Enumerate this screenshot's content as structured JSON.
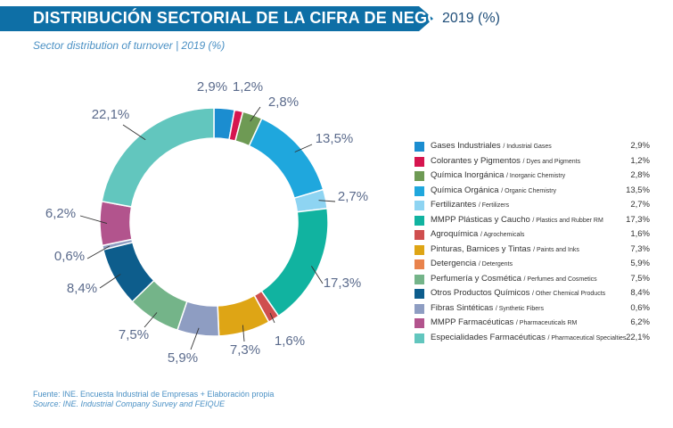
{
  "header": {
    "title": "DISTRIBUCIÓN SECTORIAL DE LA CIFRA DE NEGOCIOS",
    "year": "2019 (%)"
  },
  "subtitle": "Sector distribution of turnover | 2019 (%)",
  "colors": {
    "header_bar": "#0e6fa6",
    "label_text": "#5b6b8c"
  },
  "chart_data": {
    "type": "pie",
    "title": "DISTRIBUCIÓN SECTORIAL DE LA CIFRA DE NEGOCIOS",
    "subtitle": "Sector distribution of turnover | 2019 (%)",
    "donut": true,
    "legend_position": "right",
    "series": [
      {
        "name": "Gases Industriales",
        "name_en": "/ Industrial Gases",
        "value": 2.9,
        "label": "2,9%",
        "color": "#1b8dd0"
      },
      {
        "name": "Colorantes y Pigmentos",
        "name_en": "/ Dyes and Pigments",
        "value": 1.2,
        "label": "1,2%",
        "color": "#d6154f"
      },
      {
        "name": "Química Inorgánica",
        "name_en": "/ Inorganic Chemistry",
        "value": 2.8,
        "label": "2,8%",
        "color": "#6e9a54"
      },
      {
        "name": "Química Orgánica",
        "name_en": "/ Organic Chemistry",
        "value": 13.5,
        "label": "13,5%",
        "color": "#1fa7dd"
      },
      {
        "name": "Fertilizantes",
        "name_en": "/ Fertilizers",
        "value": 2.7,
        "label": "2,7%",
        "color": "#8ed4f2"
      },
      {
        "name": "MMPP Plásticas y Caucho",
        "name_en": "/ Plastics and Rubber RM",
        "value": 17.3,
        "label": "17,3%",
        "color": "#11b3a0"
      },
      {
        "name": "Agroquímica",
        "name_en": "/ Agrochemicals",
        "value": 1.6,
        "label": "1,6%",
        "color": "#cf4e4e"
      },
      {
        "name": "Pinturas, Barnices y Tintas",
        "name_en": "/ Paints and Inks",
        "value": 7.3,
        "label": "7,3%",
        "color": "#dea515"
      },
      {
        "name": "Detergencia",
        "name_en": "/ Detergents",
        "value": 5.9,
        "label": "5,9%",
        "color": "#e9834c"
      },
      {
        "name": "Perfumería y Cosmética",
        "name_en": "/ Perfumes and Cosmetics",
        "value": 7.5,
        "label": "7,5%",
        "color": "#74b489"
      },
      {
        "name": "Otros Productos Químicos",
        "name_en": "/ Other Chemical Products",
        "value": 8.4,
        "label": "8,4%",
        "color": "#0d5d8c"
      },
      {
        "name": "Fibras Sintéticas",
        "name_en": "/ Synthetic Fibers",
        "value": 0.6,
        "label": "0,6%",
        "color": "#8e9dc2"
      },
      {
        "name": "MMPP Farmacéuticas",
        "name_en": "/ Pharmaceuticals RM",
        "value": 6.2,
        "label": "6,2%",
        "color": "#b2548d"
      },
      {
        "name": "Especialidades Farmacéuticas",
        "name_en": "/ Pharmaceutical Specialties",
        "value": 22.1,
        "label": "22,1%",
        "color": "#62c6be"
      }
    ],
    "slices_drawn_clockwise_from_top": [
      {
        "ref": "Gases Industriales",
        "value": 2.9,
        "color": "#1b8dd0",
        "label": "2,9%"
      },
      {
        "ref": "Colorantes y Pigmentos",
        "value": 1.2,
        "color": "#d6154f",
        "label": "1,2%"
      },
      {
        "ref": "Química Inorgánica",
        "value": 2.8,
        "color": "#6e9a54",
        "label": "2,8%"
      },
      {
        "ref": "Química Orgánica",
        "value": 13.5,
        "color": "#1fa7dd",
        "label": "13,5%"
      },
      {
        "ref": "Fertilizantes",
        "value": 2.7,
        "color": "#8ed4f2",
        "label": "2,7%"
      },
      {
        "ref": "MMPP Plásticas y Caucho",
        "value": 17.3,
        "color": "#11b3a0",
        "label": "17,3%"
      },
      {
        "ref": "Agroquímica",
        "value": 1.6,
        "color": "#cf4e4e",
        "label": "1,6%"
      },
      {
        "ref": "Pinturas, Barnices y Tintas",
        "value": 7.3,
        "color": "#dea515",
        "label": "7,3%"
      },
      {
        "ref": "Detergencia (shown)",
        "value": 5.9,
        "color": "#8e9dc2",
        "label": "5,9%"
      },
      {
        "ref": "Perfumería y Cosmética",
        "value": 7.5,
        "color": "#74b489",
        "label": "7,5%"
      },
      {
        "ref": "Otros Productos Químicos",
        "value": 8.4,
        "color": "#0d5d8c",
        "label": "8,4%"
      },
      {
        "ref": "Fibras Sintéticas",
        "value": 0.6,
        "color": "#8e9dc2",
        "label": "0,6%"
      },
      {
        "ref": "MMPP Farmacéuticas",
        "value": 6.2,
        "color": "#b2548d",
        "label": "6,2%"
      },
      {
        "ref": "Especialidades Farmacéuticas",
        "value": 22.1,
        "color": "#62c6be",
        "label": "22,1%"
      }
    ]
  },
  "source": {
    "es": "Fuente: INE. Encuesta Industrial de Empresas + Elaboración propia",
    "en": "Source: INE. Industrial Company Survey and FEIQUE"
  }
}
